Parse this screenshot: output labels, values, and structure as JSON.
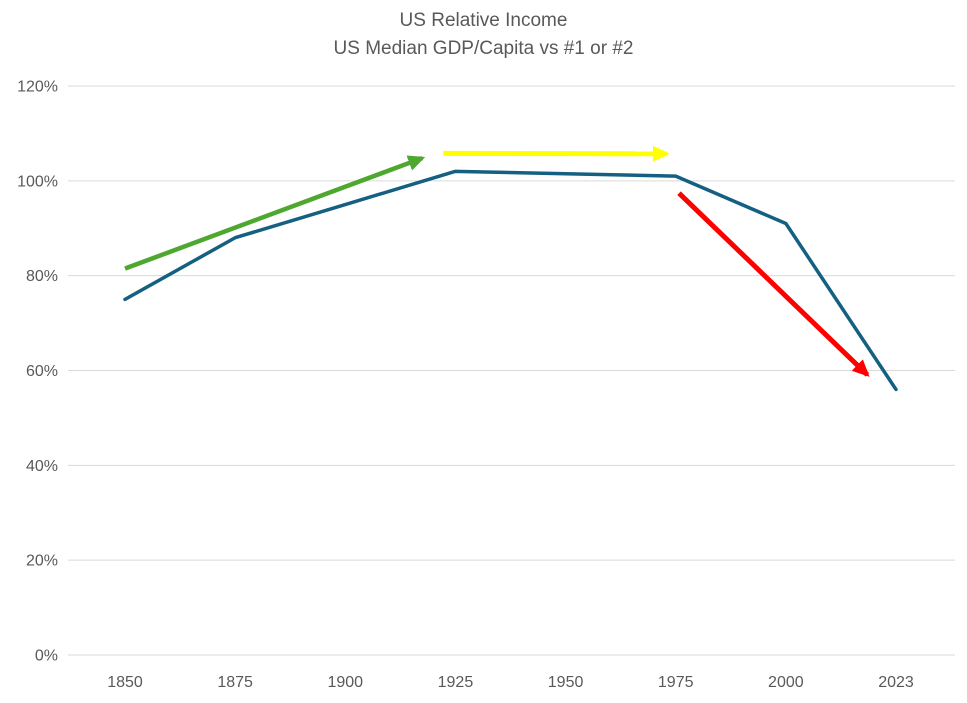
{
  "title": {
    "line1": "US Relative Income",
    "line2": "US Median GDP/Capita vs #1 or #2"
  },
  "colors": {
    "background": "#FFFFFF",
    "title_text": "#595959",
    "axis_text": "#595959",
    "gridline": "#D9D9D9",
    "series_blue": "#156082",
    "annotation_green": "#4EA72E",
    "annotation_yellow": "#FFFF00",
    "annotation_red": "#FF0000"
  },
  "chart_data": {
    "type": "line",
    "title": "US Relative Income",
    "subtitle": "US Median GDP/Capita vs #1 or #2",
    "categories": [
      "1850",
      "1875",
      "1900",
      "1925",
      "1950",
      "1975",
      "2000",
      "2023"
    ],
    "series": [
      {
        "name": "US Median GDP/Capita vs #1 or #2",
        "color": "#156082",
        "stroke_width": 3.5,
        "values": [
          75,
          88,
          95,
          102,
          101.5,
          101,
          91,
          56
        ]
      }
    ],
    "ylim": [
      0,
      120
    ],
    "ytick_step": 20,
    "ytick_labels": [
      "0%",
      "20%",
      "40%",
      "60%",
      "80%",
      "100%",
      "120%"
    ],
    "ytick_format": "percent",
    "grid": "horizontal-only",
    "legend": "none",
    "annotations": [
      {
        "name": "rise-arrow",
        "shape": "arrow",
        "color": "#4EA72E",
        "stroke_width": 4.5,
        "x1_index": 0.0,
        "y1_pct": 81.5,
        "x2_index": 2.7,
        "y2_pct": 104.8
      },
      {
        "name": "plateau-arrow",
        "shape": "arrow",
        "color": "#FFFF00",
        "stroke_width": 5,
        "x1_index": 2.89,
        "y1_pct": 105.8,
        "x2_index": 4.92,
        "y2_pct": 105.7
      },
      {
        "name": "decline-arrow",
        "shape": "arrow",
        "color": "#FF0000",
        "stroke_width": 5,
        "x1_index": 5.03,
        "y1_pct": 97.4,
        "x2_index": 6.74,
        "y2_pct": 59.1
      }
    ]
  }
}
